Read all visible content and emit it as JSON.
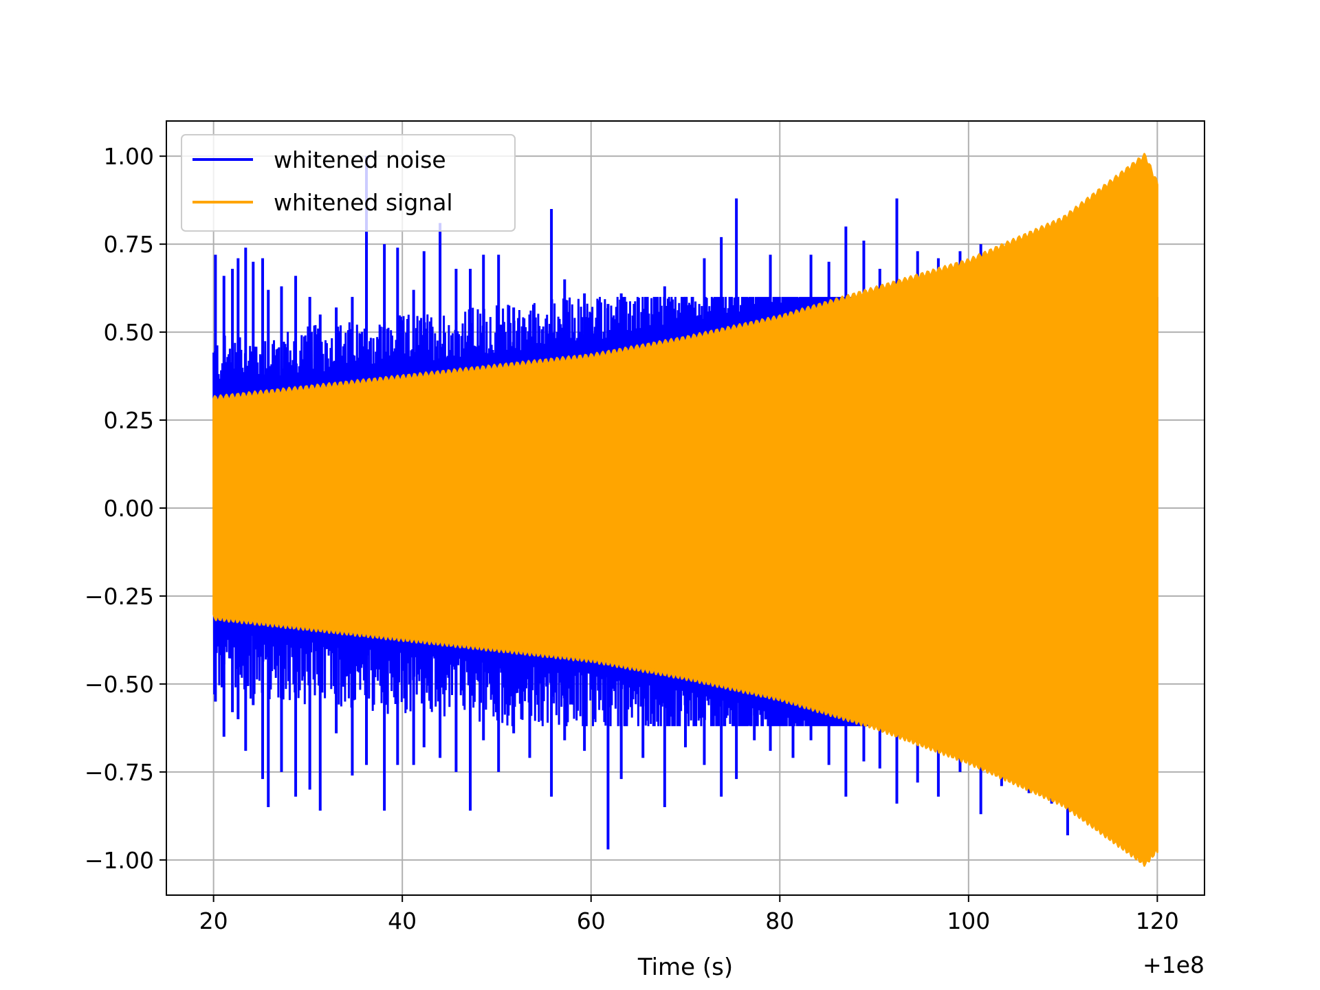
{
  "chart_data": {
    "type": "line",
    "title": "",
    "xlabel": "Time (s)",
    "ylabel": "",
    "x_offset_label": "+1e8",
    "xlim": [
      15,
      125
    ],
    "ylim": [
      -1.1,
      1.1
    ],
    "grid": true,
    "legend_position": "top-left",
    "x_ticks": [
      20,
      40,
      60,
      80,
      100,
      120
    ],
    "x_tick_labels": [
      "20",
      "40",
      "60",
      "80",
      "100",
      "120"
    ],
    "y_ticks": [
      1.0,
      0.75,
      0.5,
      0.25,
      0.0,
      -0.25,
      -0.5,
      -0.75,
      -1.0
    ],
    "y_tick_labels": [
      "1.00",
      "0.75",
      "0.50",
      "0.25",
      "0.00",
      "−0.25",
      "−0.50",
      "−0.75",
      "−1.00"
    ],
    "series": [
      {
        "name": "whitened noise",
        "color": "#0000ff",
        "description_stats": {
          "x_start": 20,
          "x_end": 120
        },
        "spikes": [
          [
            20.2,
            0.72,
            -0.55
          ],
          [
            21.1,
            0.66,
            -0.65
          ],
          [
            22.0,
            0.68,
            -0.58
          ],
          [
            22.6,
            0.71,
            -0.6
          ],
          [
            23.4,
            0.74,
            -0.69
          ],
          [
            24.2,
            0.7,
            -0.56
          ],
          [
            25.2,
            0.71,
            -0.77
          ],
          [
            25.8,
            0.62,
            -0.85
          ],
          [
            27.2,
            0.63,
            -0.75
          ],
          [
            28.7,
            0.66,
            -0.82
          ],
          [
            30.2,
            0.6,
            -0.8
          ],
          [
            31.3,
            0.55,
            -0.86
          ],
          [
            33.0,
            0.57,
            -0.64
          ],
          [
            34.7,
            0.6,
            -0.76
          ],
          [
            36.2,
            1.0,
            -0.73
          ],
          [
            38.1,
            0.75,
            -0.86
          ],
          [
            39.5,
            0.74,
            -0.73
          ],
          [
            41.2,
            0.62,
            -0.73
          ],
          [
            42.3,
            0.73,
            -0.68
          ],
          [
            44.0,
            0.81,
            -0.71
          ],
          [
            45.7,
            0.68,
            -0.75
          ],
          [
            47.2,
            0.68,
            -0.86
          ],
          [
            48.6,
            0.72,
            -0.66
          ],
          [
            50.2,
            0.72,
            -0.75
          ],
          [
            51.8,
            0.57,
            -0.64
          ],
          [
            53.5,
            0.55,
            -0.71
          ],
          [
            55.8,
            0.85,
            -0.82
          ],
          [
            57.2,
            0.65,
            -0.66
          ],
          [
            59.3,
            0.61,
            -0.69
          ],
          [
            61.8,
            0.58,
            -0.97
          ],
          [
            63.2,
            0.61,
            -0.77
          ],
          [
            65.5,
            0.53,
            -0.71
          ],
          [
            67.8,
            0.63,
            -0.85
          ],
          [
            70.0,
            0.6,
            -0.68
          ],
          [
            72.0,
            0.71,
            -0.73
          ],
          [
            73.8,
            0.77,
            -0.82
          ],
          [
            75.4,
            0.88,
            -0.77
          ],
          [
            77.3,
            0.57,
            -0.66
          ],
          [
            79.0,
            0.72,
            -0.69
          ],
          [
            81.4,
            0.57,
            -0.71
          ],
          [
            83.3,
            0.72,
            -0.66
          ],
          [
            85.2,
            0.7,
            -0.73
          ],
          [
            87.0,
            0.8,
            -0.82
          ],
          [
            88.9,
            0.76,
            -0.72
          ],
          [
            90.6,
            0.68,
            -0.74
          ],
          [
            92.4,
            0.88,
            -0.84
          ],
          [
            94.6,
            0.73,
            -0.78
          ],
          [
            96.8,
            0.71,
            -0.82
          ],
          [
            99.1,
            0.73,
            -0.75
          ],
          [
            101.3,
            0.75,
            -0.87
          ],
          [
            103.5,
            0.71,
            -0.79
          ],
          [
            106.4,
            0.73,
            -0.81
          ],
          [
            108.8,
            0.71,
            -0.84
          ],
          [
            110.5,
            0.82,
            -0.93
          ]
        ]
      },
      {
        "name": "whitened signal",
        "color": "#ffa500",
        "envelope_upper": [
          [
            20,
            0.31
          ],
          [
            30,
            0.34
          ],
          [
            40,
            0.37
          ],
          [
            50,
            0.4
          ],
          [
            60,
            0.43
          ],
          [
            70,
            0.48
          ],
          [
            80,
            0.54
          ],
          [
            90,
            0.62
          ],
          [
            100,
            0.7
          ],
          [
            110,
            0.82
          ],
          [
            118.7,
            1.0
          ],
          [
            120,
            0.92
          ]
        ],
        "envelope_lower": [
          [
            20,
            -0.31
          ],
          [
            30,
            -0.34
          ],
          [
            40,
            -0.37
          ],
          [
            50,
            -0.4
          ],
          [
            60,
            -0.43
          ],
          [
            70,
            -0.48
          ],
          [
            80,
            -0.54
          ],
          [
            90,
            -0.62
          ],
          [
            100,
            -0.72
          ],
          [
            110,
            -0.84
          ],
          [
            118.7,
            -1.01
          ],
          [
            120,
            -0.97
          ]
        ]
      }
    ]
  },
  "colors": {
    "noise": "#0000ff",
    "signal": "#ffa500",
    "grid": "#b0b0b0",
    "frame": "#000000"
  }
}
